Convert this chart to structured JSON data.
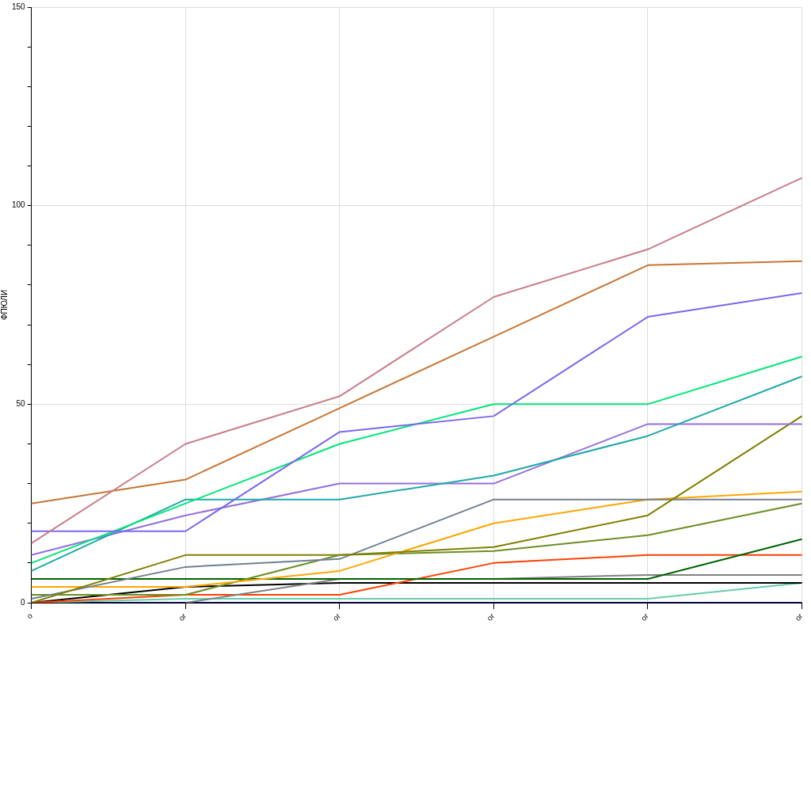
{
  "chart_data": {
    "type": "line",
    "ylabel": "ФПЮЛИ",
    "categories": [
      "о",
      "ог",
      "ог",
      "ог",
      "ог",
      "ог"
    ],
    "ylim": [
      0,
      150
    ],
    "yticks": [
      0,
      {
        "value": 10,
        "label": null
      },
      {
        "value": 20,
        "label": null
      },
      {
        "value": 30,
        "label": null
      },
      {
        "value": 40,
        "label": null
      },
      50,
      {
        "value": 60,
        "label": null
      },
      {
        "value": 70,
        "label": null
      },
      {
        "value": 80,
        "label": null
      },
      {
        "value": 90,
        "label": null
      },
      100,
      {
        "value": 110,
        "label": null
      },
      {
        "value": 120,
        "label": null
      },
      {
        "value": 130,
        "label": null
      },
      {
        "value": 140,
        "label": null
      },
      150
    ],
    "grid": true,
    "legend": false,
    "marker": "none",
    "line_style": "solid",
    "series": [
      {
        "color": "#c97d8a",
        "values": [
          15,
          40,
          52,
          77,
          89,
          107
        ]
      },
      {
        "color": "#c87533",
        "values": [
          25,
          31,
          49,
          67,
          85,
          86
        ]
      },
      {
        "color": "#7b68ee",
        "values": [
          18,
          18,
          43,
          47,
          72,
          78
        ]
      },
      {
        "color": "#00e676",
        "values": [
          10,
          25,
          40,
          50,
          50,
          62
        ]
      },
      {
        "color": "#20a8a8",
        "values": [
          8,
          26,
          26,
          32,
          42,
          57
        ]
      },
      {
        "color": "#9370db",
        "values": [
          12,
          22,
          30,
          30,
          45,
          45
        ]
      },
      {
        "color": "#808000",
        "values": [
          0,
          12,
          12,
          14,
          22,
          47
        ]
      },
      {
        "color": "#708090",
        "values": [
          1,
          9,
          11,
          26,
          26,
          26
        ]
      },
      {
        "color": "#ffa500",
        "values": [
          4,
          4,
          8,
          20,
          26,
          28
        ]
      },
      {
        "color": "#6b8e23",
        "values": [
          2,
          2,
          12,
          13,
          17,
          25
        ]
      },
      {
        "color": "#006400",
        "values": [
          6,
          6,
          6,
          6,
          6,
          16
        ]
      },
      {
        "color": "#808080",
        "values": [
          null,
          0,
          6,
          6,
          7,
          7
        ]
      },
      {
        "color": "#ff4000",
        "values": [
          0,
          2,
          2,
          10,
          12,
          12
        ]
      },
      {
        "color": "#000000",
        "values": [
          0,
          4,
          5,
          5,
          5,
          5
        ]
      },
      {
        "color": "#66cdaa",
        "values": [
          0,
          1,
          1,
          1,
          1,
          5
        ]
      },
      {
        "color": "#000080",
        "values": [
          0,
          0,
          0,
          0,
          0,
          0
        ]
      }
    ]
  }
}
